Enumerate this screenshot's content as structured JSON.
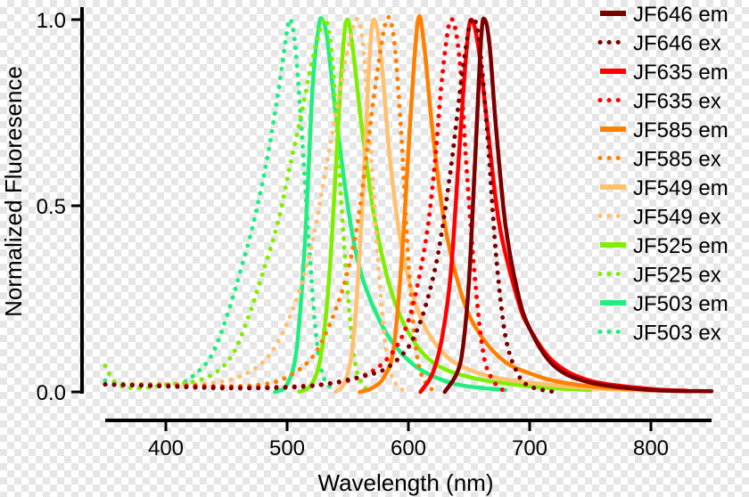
{
  "chart_data": {
    "type": "line",
    "title": "",
    "xlabel": "Wavelength (nm)",
    "ylabel": "Normalized Fluoresence",
    "xlim": [
      350,
      850
    ],
    "ylim": [
      0,
      1
    ],
    "x_ticks": [
      400,
      500,
      600,
      700,
      800
    ],
    "x_tick_labels": [
      "400",
      "500",
      "600",
      "700",
      "800"
    ],
    "y_ticks": [
      0,
      0.5,
      1
    ],
    "y_tick_labels": [
      "0.0",
      "0.5",
      "1.0"
    ],
    "grid": false,
    "legend_position": "right",
    "series": [
      {
        "name": "JF646 em",
        "style": "solid",
        "color": "#7b0000",
        "points": [
          [
            630,
            0.0
          ],
          [
            640,
            0.05
          ],
          [
            645,
            0.12
          ],
          [
            650,
            0.3
          ],
          [
            655,
            0.62
          ],
          [
            660,
            0.95
          ],
          [
            663,
            1.0
          ],
          [
            667,
            0.93
          ],
          [
            672,
            0.72
          ],
          [
            680,
            0.45
          ],
          [
            690,
            0.27
          ],
          [
            700,
            0.17
          ],
          [
            720,
            0.07
          ],
          [
            750,
            0.025
          ],
          [
            800,
            0.005
          ],
          [
            850,
            0.002
          ]
        ]
      },
      {
        "name": "JF646 ex",
        "style": "dotted",
        "color": "#7b0000",
        "points": [
          [
            350,
            0.02
          ],
          [
            400,
            0.015
          ],
          [
            450,
            0.01
          ],
          [
            500,
            0.012
          ],
          [
            530,
            0.02
          ],
          [
            560,
            0.04
          ],
          [
            580,
            0.06
          ],
          [
            595,
            0.1
          ],
          [
            605,
            0.15
          ],
          [
            615,
            0.24
          ],
          [
            625,
            0.38
          ],
          [
            635,
            0.6
          ],
          [
            645,
            0.87
          ],
          [
            652,
            1.0
          ],
          [
            658,
            0.95
          ],
          [
            665,
            0.7
          ],
          [
            672,
            0.38
          ],
          [
            680,
            0.15
          ],
          [
            690,
            0.05
          ],
          [
            700,
            0.015
          ],
          [
            720,
            0.0
          ]
        ]
      },
      {
        "name": "JF635 em",
        "style": "solid",
        "color": "#ff0000",
        "points": [
          [
            610,
            0.0
          ],
          [
            620,
            0.05
          ],
          [
            628,
            0.15
          ],
          [
            635,
            0.32
          ],
          [
            642,
            0.65
          ],
          [
            648,
            0.92
          ],
          [
            652,
            1.0
          ],
          [
            658,
            0.92
          ],
          [
            665,
            0.72
          ],
          [
            675,
            0.45
          ],
          [
            690,
            0.25
          ],
          [
            700,
            0.17
          ],
          [
            720,
            0.08
          ],
          [
            750,
            0.03
          ],
          [
            800,
            0.008
          ],
          [
            830,
            0.003
          ]
        ]
      },
      {
        "name": "JF635 ex",
        "style": "dotted",
        "color": "#ff0000",
        "points": [
          [
            350,
            0.02
          ],
          [
            420,
            0.015
          ],
          [
            480,
            0.012
          ],
          [
            530,
            0.02
          ],
          [
            560,
            0.04
          ],
          [
            580,
            0.08
          ],
          [
            595,
            0.15
          ],
          [
            605,
            0.25
          ],
          [
            615,
            0.42
          ],
          [
            622,
            0.62
          ],
          [
            628,
            0.85
          ],
          [
            635,
            1.0
          ],
          [
            642,
            0.9
          ],
          [
            648,
            0.6
          ],
          [
            655,
            0.3
          ],
          [
            662,
            0.1
          ],
          [
            670,
            0.03
          ],
          [
            680,
            0.0
          ]
        ]
      },
      {
        "name": "JF585 em",
        "style": "solid",
        "color": "#ff8000",
        "points": [
          [
            560,
            0.0
          ],
          [
            570,
            0.01
          ],
          [
            580,
            0.04
          ],
          [
            588,
            0.12
          ],
          [
            595,
            0.38
          ],
          [
            602,
            0.75
          ],
          [
            608,
            1.0
          ],
          [
            613,
            0.93
          ],
          [
            620,
            0.7
          ],
          [
            630,
            0.45
          ],
          [
            645,
            0.25
          ],
          [
            660,
            0.15
          ],
          [
            680,
            0.08
          ],
          [
            700,
            0.05
          ],
          [
            720,
            0.03
          ],
          [
            750,
            0.015
          ],
          [
            800,
            0.005
          ],
          [
            830,
            0.002
          ]
        ]
      },
      {
        "name": "JF585 ex",
        "style": "dotted",
        "color": "#ff8000",
        "points": [
          [
            350,
            0.02
          ],
          [
            400,
            0.02
          ],
          [
            450,
            0.015
          ],
          [
            480,
            0.02
          ],
          [
            500,
            0.04
          ],
          [
            520,
            0.09
          ],
          [
            535,
            0.18
          ],
          [
            548,
            0.3
          ],
          [
            558,
            0.45
          ],
          [
            566,
            0.65
          ],
          [
            574,
            0.85
          ],
          [
            582,
            1.0
          ],
          [
            588,
            0.95
          ],
          [
            594,
            0.7
          ],
          [
            600,
            0.35
          ],
          [
            607,
            0.1
          ],
          [
            615,
            0.02
          ],
          [
            625,
            0.0
          ]
        ]
      },
      {
        "name": "JF549 em",
        "style": "solid",
        "color": "#ffc070",
        "points": [
          [
            540,
            0.0
          ],
          [
            548,
            0.03
          ],
          [
            555,
            0.15
          ],
          [
            562,
            0.5
          ],
          [
            568,
            0.9
          ],
          [
            572,
            1.0
          ],
          [
            578,
            0.88
          ],
          [
            585,
            0.62
          ],
          [
            595,
            0.38
          ],
          [
            610,
            0.2
          ],
          [
            630,
            0.1
          ],
          [
            650,
            0.06
          ],
          [
            670,
            0.04
          ],
          [
            700,
            0.025
          ],
          [
            750,
            0.01
          ],
          [
            800,
            0.003
          ]
        ]
      },
      {
        "name": "JF549 ex",
        "style": "dotted",
        "color": "#ffc070",
        "points": [
          [
            350,
            0.02
          ],
          [
            380,
            0.02
          ],
          [
            400,
            0.02
          ],
          [
            420,
            0.02
          ],
          [
            440,
            0.025
          ],
          [
            460,
            0.04
          ],
          [
            480,
            0.08
          ],
          [
            495,
            0.15
          ],
          [
            510,
            0.27
          ],
          [
            522,
            0.42
          ],
          [
            532,
            0.6
          ],
          [
            542,
            0.78
          ],
          [
            550,
            0.92
          ],
          [
            557,
            1.0
          ],
          [
            562,
            0.95
          ],
          [
            568,
            0.7
          ],
          [
            575,
            0.35
          ],
          [
            582,
            0.1
          ],
          [
            590,
            0.02
          ],
          [
            600,
            0.0
          ]
        ]
      },
      {
        "name": "JF525 em",
        "style": "solid",
        "color": "#80ee00",
        "points": [
          [
            510,
            0.0
          ],
          [
            520,
            0.02
          ],
          [
            528,
            0.1
          ],
          [
            535,
            0.32
          ],
          [
            541,
            0.65
          ],
          [
            546,
            0.92
          ],
          [
            550,
            1.0
          ],
          [
            555,
            0.9
          ],
          [
            562,
            0.7
          ],
          [
            572,
            0.47
          ],
          [
            585,
            0.28
          ],
          [
            600,
            0.16
          ],
          [
            620,
            0.08
          ],
          [
            650,
            0.04
          ],
          [
            700,
            0.015
          ],
          [
            750,
            0.005
          ]
        ]
      },
      {
        "name": "JF525 ex",
        "style": "dotted",
        "color": "#80ee00",
        "points": [
          [
            350,
            0.07
          ],
          [
            360,
            0.02
          ],
          [
            380,
            0.01
          ],
          [
            400,
            0.02
          ],
          [
            420,
            0.025
          ],
          [
            440,
            0.05
          ],
          [
            455,
            0.1
          ],
          [
            468,
            0.2
          ],
          [
            480,
            0.32
          ],
          [
            492,
            0.45
          ],
          [
            502,
            0.6
          ],
          [
            512,
            0.75
          ],
          [
            520,
            0.88
          ],
          [
            527,
            0.97
          ],
          [
            532,
            1.0
          ],
          [
            537,
            0.9
          ],
          [
            542,
            0.65
          ],
          [
            548,
            0.35
          ],
          [
            555,
            0.1
          ],
          [
            562,
            0.02
          ],
          [
            570,
            0.0
          ]
        ]
      },
      {
        "name": "JF503 em",
        "style": "solid",
        "color": "#20ee80",
        "points": [
          [
            490,
            0.0
          ],
          [
            500,
            0.02
          ],
          [
            508,
            0.12
          ],
          [
            515,
            0.42
          ],
          [
            521,
            0.82
          ],
          [
            526,
            0.98
          ],
          [
            529,
            1.0
          ],
          [
            533,
            0.95
          ],
          [
            540,
            0.75
          ],
          [
            550,
            0.5
          ],
          [
            560,
            0.33
          ],
          [
            575,
            0.2
          ],
          [
            590,
            0.12
          ],
          [
            610,
            0.06
          ],
          [
            640,
            0.02
          ],
          [
            680,
            0.005
          ]
        ]
      },
      {
        "name": "JF503 ex",
        "style": "dotted",
        "color": "#20ee80",
        "points": [
          [
            350,
            0.03
          ],
          [
            370,
            0.02
          ],
          [
            390,
            0.02
          ],
          [
            410,
            0.02
          ],
          [
            425,
            0.05
          ],
          [
            438,
            0.1
          ],
          [
            450,
            0.2
          ],
          [
            462,
            0.33
          ],
          [
            472,
            0.45
          ],
          [
            482,
            0.6
          ],
          [
            490,
            0.75
          ],
          [
            496,
            0.88
          ],
          [
            500,
            0.97
          ],
          [
            503,
            1.0
          ],
          [
            507,
            0.92
          ],
          [
            512,
            0.7
          ],
          [
            518,
            0.4
          ],
          [
            524,
            0.15
          ],
          [
            530,
            0.04
          ],
          [
            540,
            0.0
          ]
        ]
      }
    ]
  }
}
